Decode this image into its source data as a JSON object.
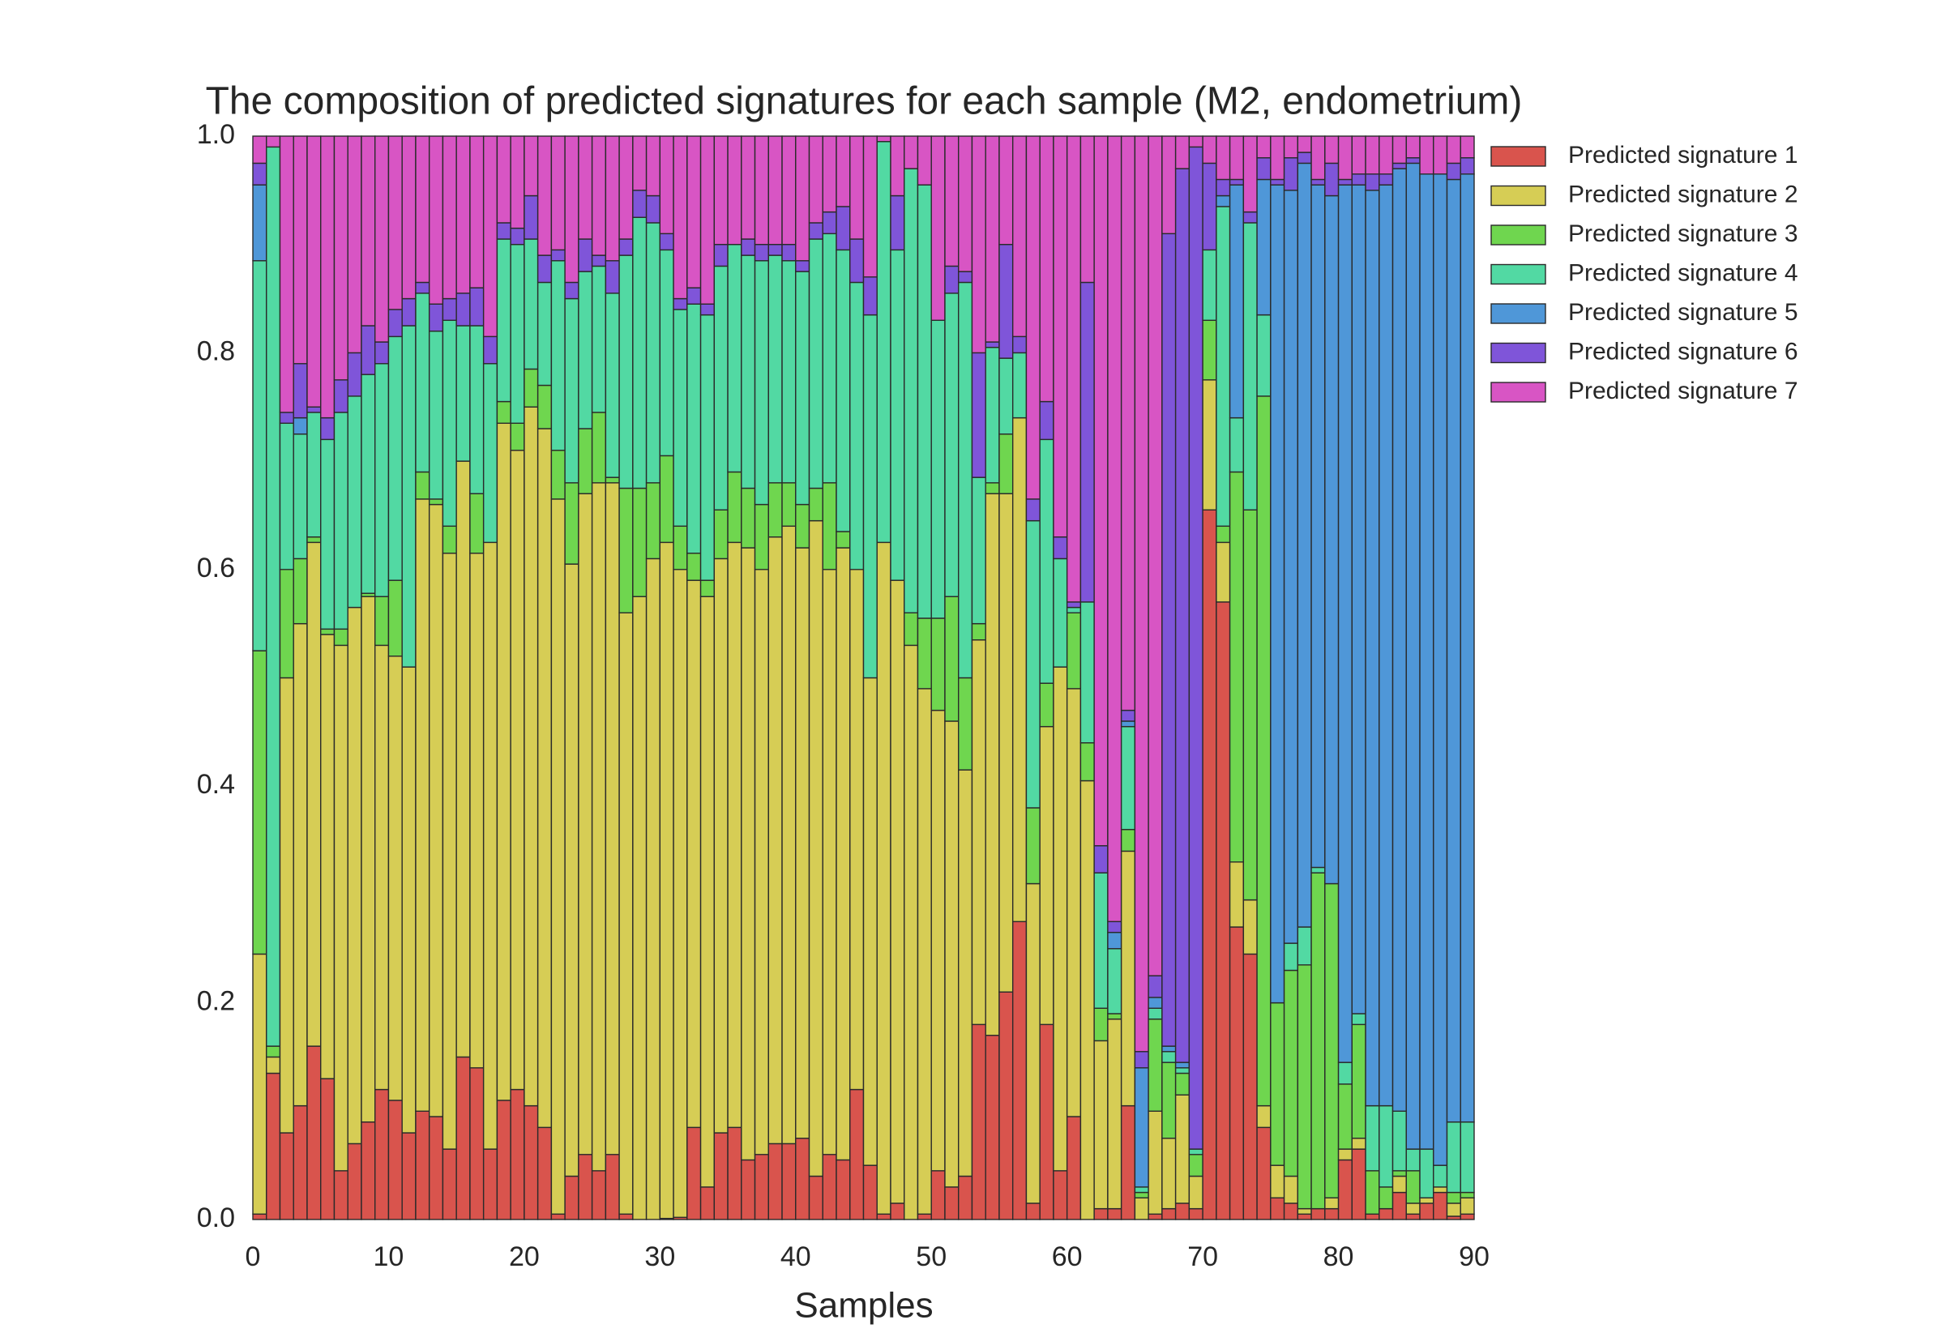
{
  "chart_data": {
    "type": "stacked-bar",
    "title": "The composition of predicted signatures for each sample (M2, endometrium)",
    "x_label": "Samples",
    "x": [
      0,
      1,
      2,
      3,
      4,
      5,
      6,
      7,
      8,
      9,
      10,
      11,
      12,
      13,
      14,
      15,
      16,
      17,
      18,
      19,
      20,
      21,
      22,
      23,
      24,
      25,
      26,
      27,
      28,
      29,
      30,
      31,
      32,
      33,
      34,
      35,
      36,
      37,
      38,
      39,
      40,
      41,
      42,
      43,
      44,
      45,
      46,
      47,
      48,
      49,
      50,
      51,
      52,
      53,
      54,
      55,
      56,
      57,
      58,
      59,
      60,
      61,
      62,
      63,
      64,
      65,
      66,
      67,
      68,
      69,
      70,
      71,
      72,
      73,
      74,
      75,
      76,
      77,
      78,
      79,
      80,
      81,
      82,
      83,
      84,
      85,
      86,
      87,
      88,
      89
    ],
    "xlim": [
      0,
      90
    ],
    "xticks": [
      0,
      10,
      20,
      30,
      40,
      50,
      60,
      70,
      80,
      90
    ],
    "ylim": [
      0,
      1
    ],
    "yticks": [
      {
        "value": 0,
        "label": "0.0"
      },
      0.2,
      0.4,
      0.6,
      0.8,
      {
        "value": 1,
        "label": "1.0"
      }
    ],
    "grid": false,
    "legend": "outside-right",
    "series": [
      {
        "name": "Predicted signature 1",
        "color": "#d9544d",
        "values": [
          0.005,
          0.135,
          0.08,
          0.105,
          0.16,
          0.13,
          0.045,
          0.07,
          0.09,
          0.12,
          0.11,
          0.08,
          0.1,
          0.095,
          0.065,
          0.15,
          0.14,
          0.065,
          0.11,
          0.12,
          0.105,
          0.085,
          0.005,
          0.04,
          0.06,
          0.045,
          0.06,
          0.005,
          0,
          0,
          0.001,
          0.002,
          0.085,
          0.03,
          0.08,
          0.085,
          0.055,
          0.06,
          0.07,
          0.07,
          0.075,
          0.04,
          0.06,
          0.055,
          0.12,
          0.05,
          0.005,
          0.015,
          0,
          0.005,
          0.045,
          0.03,
          0.04,
          0.18,
          0.17,
          0.21,
          0.275,
          0.015,
          0.18,
          0.045,
          0.095,
          0,
          0.01,
          0.01,
          0.105,
          0,
          0.005,
          0.01,
          0.015,
          0.01,
          0.655,
          0.57,
          0.27,
          0.245,
          0.085,
          0.02,
          0.015,
          0.005,
          0.01,
          0.01,
          0.055,
          0.065,
          0.005,
          0.01,
          0.025,
          0.005,
          0.015,
          0.025,
          0.003,
          0.005
        ]
      },
      {
        "name": "Predicted signature 2",
        "color": "#d6cd55",
        "values": [
          0.24,
          0.015,
          0.42,
          0.445,
          0.465,
          0.41,
          0.485,
          0.495,
          0.485,
          0.41,
          0.41,
          0.43,
          0.565,
          0.565,
          0.55,
          0.55,
          0.475,
          0.56,
          0.625,
          0.59,
          0.645,
          0.645,
          0.66,
          0.565,
          0.61,
          0.635,
          0.62,
          0.555,
          0.575,
          0.61,
          0.624,
          0.598,
          0.505,
          0.545,
          0.53,
          0.54,
          0.565,
          0.54,
          0.56,
          0.57,
          0.545,
          0.605,
          0.54,
          0.565,
          0.48,
          0.45,
          0.62,
          0.575,
          0.53,
          0.485,
          0.425,
          0.43,
          0.375,
          0.355,
          0.5,
          0.46,
          0.465,
          0.295,
          0.275,
          0.465,
          0.395,
          0.405,
          0.155,
          0.175,
          0.235,
          0.02,
          0.095,
          0.065,
          0.1,
          0.03,
          0.12,
          0.055,
          0.06,
          0.05,
          0.02,
          0.03,
          0.025,
          0.005,
          0,
          0.01,
          0.01,
          0.01,
          0,
          0,
          0.015,
          0.01,
          0.005,
          0.005,
          0.012,
          0.015
        ]
      },
      {
        "name": "Predicted signature 3",
        "color": "#6fd64f",
        "values": [
          0.28,
          0.01,
          0.1,
          0.06,
          0.005,
          0.005,
          0.015,
          0,
          0.003,
          0.045,
          0.07,
          0,
          0.025,
          0.005,
          0.025,
          0,
          0.055,
          0,
          0.02,
          0.025,
          0.035,
          0.04,
          0.045,
          0.075,
          0.06,
          0.065,
          0.005,
          0.115,
          0.1,
          0.07,
          0.08,
          0.04,
          0.025,
          0.015,
          0.045,
          0.065,
          0.055,
          0.06,
          0.05,
          0.04,
          0.04,
          0.03,
          0.08,
          0.015,
          0,
          0,
          0,
          0,
          0.03,
          0.065,
          0.085,
          0.115,
          0.085,
          0.015,
          0.01,
          0.055,
          0,
          0.07,
          0.04,
          0,
          0.07,
          0.035,
          0.03,
          0.005,
          0.02,
          0.005,
          0.085,
          0.07,
          0.02,
          0.02,
          0.055,
          0.015,
          0.36,
          0.36,
          0.655,
          0.15,
          0.19,
          0.225,
          0.31,
          0.29,
          0.06,
          0.105,
          0.04,
          0.02,
          0.005,
          0.03,
          0,
          0,
          0.01,
          0.005
        ]
      },
      {
        "name": "Predicted signature 4",
        "color": "#52d9a3",
        "values": [
          0.36,
          0.83,
          0.135,
          0.115,
          0.115,
          0.175,
          0.2,
          0.195,
          0.202,
          0.215,
          0.225,
          0.315,
          0.165,
          0.155,
          0.19,
          0.125,
          0.155,
          0.165,
          0.15,
          0.165,
          0.12,
          0.095,
          0.175,
          0.17,
          0.145,
          0.135,
          0.17,
          0.215,
          0.25,
          0.24,
          0.19,
          0.2,
          0.23,
          0.245,
          0.225,
          0.21,
          0.215,
          0.225,
          0.21,
          0.205,
          0.215,
          0.23,
          0.23,
          0.26,
          0.265,
          0.335,
          0.37,
          0.305,
          0.41,
          0.4,
          0.275,
          0.28,
          0.365,
          0.135,
          0.125,
          0.07,
          0.06,
          0.265,
          0.225,
          0.1,
          0.005,
          0.13,
          0.125,
          0.06,
          0.095,
          0.005,
          0.01,
          0.01,
          0.005,
          0.005,
          0.065,
          0.295,
          0.05,
          0.265,
          0.075,
          0,
          0.025,
          0.035,
          0.005,
          0,
          0.02,
          0.01,
          0.06,
          0.075,
          0.055,
          0.02,
          0.045,
          0.02,
          0.065,
          0.065
        ]
      },
      {
        "name": "Predicted signature 5",
        "color": "#4f97d8",
        "values": [
          0.07,
          0,
          0,
          0.015,
          0,
          0,
          0,
          0,
          0,
          0,
          0,
          0,
          0,
          0,
          0,
          0,
          0,
          0,
          0,
          0,
          0,
          0,
          0,
          0,
          0,
          0,
          0,
          0,
          0,
          0,
          0,
          0,
          0,
          0,
          0,
          0,
          0,
          0,
          0,
          0,
          0,
          0,
          0,
          0,
          0,
          0,
          0,
          0,
          0,
          0,
          0,
          0,
          0,
          0,
          0,
          0,
          0,
          0,
          0,
          0,
          0,
          0,
          0,
          0.015,
          0.005,
          0.11,
          0.01,
          0.005,
          0.005,
          0,
          0,
          0.01,
          0.215,
          0,
          0.125,
          0.755,
          0.695,
          0.705,
          0.63,
          0.635,
          0.81,
          0.765,
          0.845,
          0.85,
          0.87,
          0.91,
          0.9,
          0.915,
          0.87,
          0.875
        ]
      },
      {
        "name": "Predicted signature 6",
        "color": "#7f55d9",
        "values": [
          0.02,
          0,
          0.01,
          0.05,
          0.005,
          0.02,
          0.03,
          0.04,
          0.045,
          0.02,
          0.025,
          0.025,
          0.01,
          0.025,
          0.02,
          0.03,
          0.035,
          0.025,
          0.015,
          0.015,
          0.04,
          0.025,
          0.01,
          0.015,
          0.03,
          0.01,
          0.03,
          0.015,
          0.025,
          0.025,
          0.015,
          0.01,
          0.015,
          0.01,
          0.02,
          0,
          0.015,
          0.015,
          0.01,
          0.015,
          0.01,
          0.015,
          0.02,
          0.04,
          0.04,
          0.035,
          0,
          0.05,
          0,
          0,
          0,
          0.025,
          0.01,
          0.115,
          0.005,
          0.105,
          0.015,
          0.02,
          0.035,
          0.02,
          0.005,
          0.295,
          0.025,
          0.01,
          0.01,
          0.015,
          0.02,
          0.75,
          0.825,
          0.925,
          0.08,
          0.015,
          0.005,
          0.01,
          0.02,
          0.005,
          0.03,
          0.01,
          0.005,
          0.03,
          0.005,
          0.01,
          0.015,
          0.01,
          0.005,
          0.005,
          0,
          0,
          0.015,
          0.015
        ]
      },
      {
        "name": "Predicted signature 7",
        "color": "#d855c4",
        "values": [
          0.025,
          0.01,
          0.255,
          0.21,
          0.25,
          0.26,
          0.225,
          0.2,
          0.175,
          0.19,
          0.16,
          0.15,
          0.135,
          0.155,
          0.15,
          0.145,
          0.14,
          0.185,
          0.08,
          0.085,
          0.055,
          0.11,
          0.105,
          0.135,
          0.095,
          0.11,
          0.115,
          0.095,
          0.05,
          0.055,
          0.09,
          0.15,
          0.14,
          0.155,
          0.1,
          0.1,
          0.095,
          0.1,
          0.1,
          0.1,
          0.115,
          0.08,
          0.07,
          0.065,
          0.095,
          0.13,
          0.005,
          0.055,
          0.03,
          0.045,
          0.17,
          0.12,
          0.125,
          0.2,
          0.19,
          0.1,
          0.185,
          0.335,
          0.245,
          0.37,
          0.43,
          0.135,
          0.655,
          0.725,
          0.53,
          0.845,
          0.775,
          0.09,
          0.03,
          0.01,
          0.025,
          0.04,
          0.04,
          0.07,
          0.02,
          0.04,
          0.02,
          0.015,
          0.04,
          0.025,
          0.04,
          0.035,
          0.035,
          0.035,
          0.025,
          0.02,
          0.035,
          0.035,
          0.025,
          0.02
        ]
      }
    ]
  }
}
